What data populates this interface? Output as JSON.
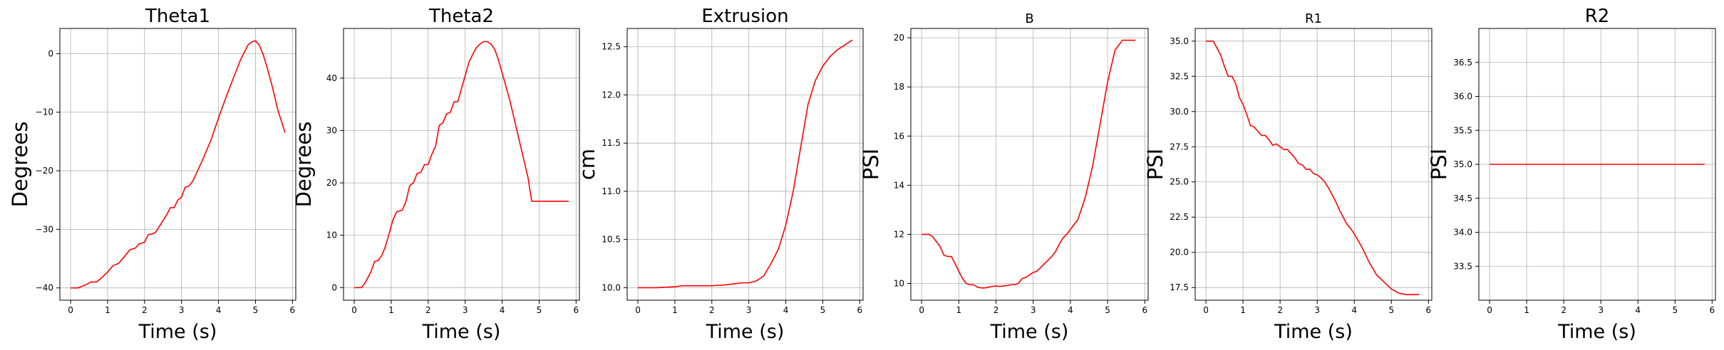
{
  "figure": {
    "line_color": "#ff0000",
    "grid_color": "#b0b0b0",
    "axis_color": "#000000"
  },
  "chart_data": [
    {
      "type": "line",
      "title": "Theta1",
      "title_size": "large",
      "xlabel": "Time (s)",
      "ylabel": "Degrees",
      "xlim": [
        -0.29,
        6.09
      ],
      "ylim": [
        -42.1,
        4.3
      ],
      "xticks": [
        0,
        1,
        2,
        3,
        4,
        5,
        6
      ],
      "yticks": [
        -40,
        -30,
        -20,
        -10,
        0
      ],
      "ytick_labels": [
        "−40",
        "−30",
        "−20",
        "−10",
        "0"
      ],
      "grid": true,
      "series": [
        {
          "color": "#ff0000",
          "x": [
            0,
            0.2,
            0.4,
            0.55,
            0.7,
            0.85,
            1.0,
            1.15,
            1.3,
            1.45,
            1.6,
            1.75,
            1.85,
            2.0,
            2.1,
            2.2,
            2.3,
            2.4,
            2.5,
            2.6,
            2.7,
            2.8,
            2.9,
            3.0,
            3.1,
            3.2,
            3.3,
            3.4,
            3.6,
            3.8,
            4.0,
            4.2,
            4.4,
            4.6,
            4.8,
            4.9,
            5.0,
            5.1,
            5.2,
            5.3,
            5.45,
            5.6,
            5.8
          ],
          "y": [
            -40,
            -40,
            -39.5,
            -39.0,
            -39.0,
            -38.2,
            -37.3,
            -36.2,
            -35.8,
            -34.7,
            -33.5,
            -33.2,
            -32.5,
            -32.2,
            -30.9,
            -30.8,
            -30.5,
            -29.5,
            -28.5,
            -27.5,
            -26.3,
            -26.3,
            -25.0,
            -24.5,
            -22.8,
            -22.6,
            -21.8,
            -20.5,
            -17.7,
            -14.7,
            -11.0,
            -7.5,
            -4.2,
            -1.0,
            1.5,
            2.0,
            2.2,
            1.5,
            0.0,
            -2.0,
            -5.5,
            -9.5,
            -13.5
          ]
        }
      ]
    },
    {
      "type": "line",
      "title": "Theta2",
      "title_size": "large",
      "xlabel": "Time (s)",
      "ylabel": "Degrees",
      "xlim": [
        -0.29,
        6.09
      ],
      "ylim": [
        -2.4,
        49.5
      ],
      "xticks": [
        0,
        1,
        2,
        3,
        4,
        5,
        6
      ],
      "yticks": [
        0,
        10,
        20,
        30,
        40
      ],
      "ytick_labels": [
        "0",
        "10",
        "20",
        "30",
        "40"
      ],
      "grid": true,
      "series": [
        {
          "color": "#ff0000",
          "x": [
            0,
            0.2,
            0.3,
            0.45,
            0.55,
            0.65,
            0.75,
            0.85,
            0.95,
            1.05,
            1.15,
            1.3,
            1.4,
            1.5,
            1.6,
            1.7,
            1.8,
            1.9,
            2.0,
            2.1,
            2.2,
            2.3,
            2.4,
            2.5,
            2.6,
            2.7,
            2.8,
            2.9,
            3.0,
            3.1,
            3.2,
            3.3,
            3.4,
            3.5,
            3.6,
            3.7,
            3.8,
            3.9,
            4.0,
            4.1,
            4.2,
            4.3,
            4.4,
            4.5,
            4.6,
            4.7,
            4.8,
            4.9,
            5.0,
            5.1,
            5.2,
            5.3,
            5.4,
            5.5,
            5.6,
            5.8
          ],
          "y": [
            0,
            0,
            1.0,
            3.0,
            5.0,
            5.2,
            6.2,
            8.0,
            10.5,
            13.0,
            14.5,
            14.8,
            16.5,
            19.5,
            20.0,
            21.8,
            22.0,
            23.5,
            23.5,
            25.5,
            27.0,
            31.0,
            31.5,
            33.2,
            33.5,
            35.5,
            35.5,
            38.0,
            40.5,
            43.0,
            44.5,
            45.8,
            46.5,
            47.0,
            47.0,
            46.5,
            45.5,
            43.5,
            41.0,
            38.5,
            36.0,
            33.0,
            30.0,
            27.0,
            24.0,
            21.0,
            16.5,
            16.5,
            16.5,
            16.5,
            16.5,
            16.5,
            16.5,
            16.5,
            16.5,
            16.5
          ]
        }
      ]
    },
    {
      "type": "line",
      "title": "Extrusion",
      "title_size": "large",
      "xlabel": "Time (s)",
      "ylabel": "cm",
      "xlim": [
        -0.29,
        6.09
      ],
      "ylim": [
        9.87,
        12.69
      ],
      "xticks": [
        0,
        1,
        2,
        3,
        4,
        5,
        6
      ],
      "yticks": [
        10.0,
        10.5,
        11.0,
        11.5,
        12.0,
        12.5
      ],
      "ytick_labels": [
        "10.0",
        "10.5",
        "11.0",
        "11.5",
        "12.0",
        "12.5"
      ],
      "grid": true,
      "series": [
        {
          "color": "#ff0000",
          "x": [
            0,
            0.5,
            1.0,
            1.2,
            1.5,
            2.0,
            2.4,
            2.6,
            2.8,
            3.0,
            3.2,
            3.4,
            3.6,
            3.8,
            4.0,
            4.2,
            4.4,
            4.6,
            4.8,
            5.0,
            5.2,
            5.4,
            5.6,
            5.8
          ],
          "y": [
            10.0,
            10.0,
            10.01,
            10.02,
            10.02,
            10.02,
            10.03,
            10.04,
            10.05,
            10.05,
            10.07,
            10.12,
            10.25,
            10.4,
            10.65,
            11.0,
            11.45,
            11.9,
            12.15,
            12.3,
            12.4,
            12.47,
            12.52,
            12.57
          ]
        }
      ]
    },
    {
      "type": "line",
      "title": "B",
      "title_size": "medium",
      "xlabel": "Time (s)",
      "ylabel": "PSI",
      "xlim": [
        -0.29,
        6.09
      ],
      "ylim": [
        9.32,
        20.38
      ],
      "xticks": [
        0,
        1,
        2,
        3,
        4,
        5,
        6
      ],
      "yticks": [
        10,
        12,
        14,
        16,
        18,
        20
      ],
      "ytick_labels": [
        "10",
        "12",
        "14",
        "16",
        "18",
        "20"
      ],
      "grid": true,
      "series": [
        {
          "color": "#ff0000",
          "x": [
            0,
            0.2,
            0.3,
            0.5,
            0.6,
            0.7,
            0.8,
            0.9,
            1.0,
            1.1,
            1.2,
            1.3,
            1.4,
            1.5,
            1.6,
            1.7,
            1.8,
            1.9,
            2.0,
            2.1,
            2.2,
            2.3,
            2.4,
            2.5,
            2.6,
            2.7,
            2.8,
            2.9,
            3.0,
            3.1,
            3.2,
            3.3,
            3.4,
            3.5,
            3.6,
            3.7,
            3.8,
            3.9,
            4.0,
            4.2,
            4.4,
            4.6,
            4.8,
            5.0,
            5.2,
            5.4,
            5.6,
            5.75
          ],
          "y": [
            12.0,
            12.0,
            11.9,
            11.5,
            11.15,
            11.1,
            11.1,
            10.8,
            10.5,
            10.2,
            10.0,
            9.95,
            9.95,
            9.85,
            9.82,
            9.82,
            9.85,
            9.88,
            9.9,
            9.88,
            9.9,
            9.92,
            9.95,
            9.95,
            10.0,
            10.2,
            10.25,
            10.35,
            10.45,
            10.5,
            10.65,
            10.8,
            10.95,
            11.1,
            11.3,
            11.6,
            11.85,
            12.0,
            12.2,
            12.6,
            13.5,
            14.8,
            16.5,
            18.2,
            19.5,
            19.9,
            19.9,
            19.9
          ]
        }
      ]
    },
    {
      "type": "line",
      "title": "R1",
      "title_size": "medium",
      "xlabel": "Time (s)",
      "ylabel": "PSI",
      "xlim": [
        -0.29,
        6.09
      ],
      "ylim": [
        16.6,
        35.9
      ],
      "xticks": [
        0,
        1,
        2,
        3,
        4,
        5,
        6
      ],
      "yticks": [
        17.5,
        20.0,
        22.5,
        25.0,
        27.5,
        30.0,
        32.5,
        35.0
      ],
      "ytick_labels": [
        "17.5",
        "20.0",
        "22.5",
        "25.0",
        "27.5",
        "30.0",
        "32.5",
        "35.0"
      ],
      "grid": true,
      "series": [
        {
          "color": "#ff0000",
          "x": [
            0,
            0.2,
            0.3,
            0.4,
            0.5,
            0.6,
            0.7,
            0.8,
            0.9,
            1.0,
            1.1,
            1.2,
            1.3,
            1.4,
            1.5,
            1.6,
            1.7,
            1.8,
            1.9,
            2.0,
            2.1,
            2.2,
            2.3,
            2.4,
            2.5,
            2.6,
            2.7,
            2.8,
            2.9,
            3.0,
            3.1,
            3.2,
            3.3,
            3.4,
            3.5,
            3.6,
            3.7,
            3.8,
            3.9,
            4.0,
            4.2,
            4.4,
            4.6,
            4.8,
            5.0,
            5.2,
            5.4,
            5.6,
            5.75
          ],
          "y": [
            35.0,
            35.0,
            34.5,
            34.0,
            33.2,
            32.5,
            32.5,
            32.0,
            31.0,
            30.5,
            29.8,
            29.0,
            28.9,
            28.6,
            28.3,
            28.3,
            28.0,
            27.6,
            27.7,
            27.5,
            27.3,
            27.3,
            27.0,
            26.7,
            26.3,
            26.2,
            25.9,
            25.9,
            25.6,
            25.5,
            25.3,
            25.0,
            24.6,
            24.1,
            23.6,
            23.0,
            22.5,
            22.0,
            21.7,
            21.3,
            20.4,
            19.3,
            18.4,
            17.9,
            17.4,
            17.1,
            17.0,
            17.0,
            17.0
          ]
        }
      ]
    },
    {
      "type": "line",
      "title": "R2",
      "title_size": "large",
      "xlabel": "Time (s)",
      "ylabel": "PSI",
      "xlim": [
        -0.29,
        6.09
      ],
      "ylim": [
        33.0,
        37.0
      ],
      "xticks": [
        0,
        1,
        2,
        3,
        4,
        5,
        6
      ],
      "yticks": [
        33.5,
        34.0,
        34.5,
        35.0,
        35.5,
        36.0,
        36.5
      ],
      "ytick_labels": [
        "33.5",
        "34.0",
        "34.5",
        "35.0",
        "35.5",
        "36.0",
        "36.5"
      ],
      "grid": true,
      "series": [
        {
          "color": "#ff0000",
          "x": [
            0,
            5.8
          ],
          "y": [
            35.0,
            35.0
          ]
        }
      ]
    }
  ]
}
